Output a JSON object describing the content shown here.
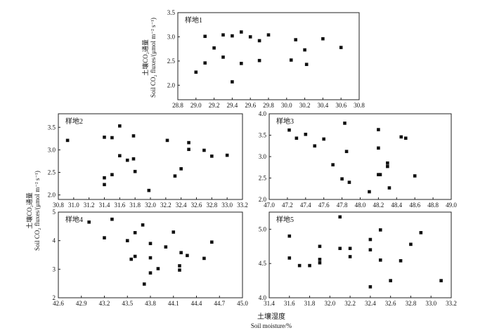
{
  "figure": {
    "y_title": {
      "zh": "土壤CO₂通量",
      "en_line": "Soil CO₂ fluxes/(μmol m⁻² s⁻¹)"
    },
    "x_title": {
      "zh": "土壤湿度",
      "en": "Soil moisture/%"
    }
  },
  "chart_data": [
    {
      "type": "scatter",
      "panel_label": "样地1",
      "xlim": [
        28.8,
        30.8
      ],
      "ylim": [
        1.7,
        3.5
      ],
      "xticks": [
        "28.8",
        "29.0",
        "29.2",
        "29.4",
        "29.6",
        "29.8",
        "30.0",
        "30.2",
        "30.4",
        "30.6",
        "30.8"
      ],
      "yticks": [
        "2.0",
        "2.5",
        "3.0",
        "3.5"
      ],
      "x": [
        29.0,
        29.1,
        29.1,
        29.2,
        29.3,
        29.3,
        29.4,
        29.4,
        29.5,
        29.5,
        29.6,
        29.7,
        29.7,
        29.8,
        30.05,
        30.1,
        30.2,
        30.22,
        30.4,
        30.6
      ],
      "y": [
        2.27,
        2.46,
        3.01,
        2.77,
        2.58,
        3.04,
        2.07,
        3.02,
        3.1,
        2.45,
        3.0,
        2.92,
        2.51,
        3.04,
        2.52,
        2.94,
        2.73,
        2.43,
        2.96,
        2.78
      ],
      "grid": false
    },
    {
      "type": "scatter",
      "panel_label": "样地2",
      "xlim": [
        30.8,
        33.2
      ],
      "ylim": [
        1.9,
        3.8
      ],
      "xticks": [
        "30.8",
        "31.0",
        "31.2",
        "31.4",
        "31.6",
        "31.8",
        "32.0",
        "32.2",
        "32.4",
        "32.6",
        "32.8",
        "33.0",
        "33.2"
      ],
      "yticks": [
        "2.0",
        "2.5",
        "3.0",
        "3.5"
      ],
      "x": [
        30.92,
        31.4,
        31.4,
        31.4,
        31.5,
        31.5,
        31.6,
        31.6,
        31.7,
        31.78,
        31.78,
        31.8,
        31.98,
        32.22,
        32.32,
        32.4,
        32.5,
        32.5,
        32.7,
        32.8,
        33.0
      ],
      "y": [
        3.21,
        3.28,
        2.38,
        2.23,
        3.27,
        2.45,
        3.53,
        2.87,
        2.77,
        3.31,
        2.8,
        2.52,
        2.1,
        3.21,
        2.42,
        2.58,
        3.16,
        3.01,
        2.99,
        2.86,
        2.88
      ],
      "grid": false
    },
    {
      "type": "scatter",
      "panel_label": "样地3",
      "xlim": [
        47.0,
        49.0
      ],
      "ylim": [
        2.0,
        4.0
      ],
      "xticks": [
        "47.0",
        "47.2",
        "47.4",
        "47.6",
        "47.8",
        "48.0",
        "48.2",
        "48.4",
        "48.6",
        "48.8",
        "49.0"
      ],
      "yticks": [
        "2.0",
        "2.5",
        "3.0",
        "3.5",
        "4.0"
      ],
      "x": [
        47.22,
        47.3,
        47.4,
        47.5,
        47.6,
        47.7,
        47.8,
        47.83,
        47.85,
        47.88,
        48.1,
        48.2,
        48.2,
        48.22,
        48.2,
        48.3,
        48.3,
        48.32,
        48.45,
        48.5,
        48.6
      ],
      "y": [
        3.62,
        3.43,
        3.52,
        3.25,
        3.41,
        2.81,
        2.48,
        3.78,
        3.12,
        2.4,
        2.18,
        3.63,
        3.2,
        2.58,
        2.58,
        2.85,
        2.77,
        2.27,
        3.46,
        3.43,
        2.55
      ],
      "grid": false
    },
    {
      "type": "scatter",
      "panel_label": "样地4",
      "xlim": [
        42.6,
        45.0
      ],
      "ylim": [
        2.0,
        5.0
      ],
      "xticks": [
        "42.6",
        "42.9",
        "43.2",
        "43.5",
        "43.8",
        "44.1",
        "44.4",
        "44.7",
        "45.0"
      ],
      "yticks": [
        "2",
        "3",
        "4",
        "5"
      ],
      "x": [
        43.0,
        43.2,
        43.3,
        43.5,
        43.55,
        43.6,
        43.6,
        43.7,
        43.72,
        43.8,
        43.8,
        43.8,
        43.9,
        44.0,
        44.1,
        44.18,
        44.18,
        44.2,
        44.28,
        44.5,
        44.6
      ],
      "y": [
        4.65,
        4.1,
        4.75,
        4.0,
        3.35,
        4.28,
        3.45,
        4.55,
        2.48,
        3.9,
        3.4,
        2.87,
        3.02,
        3.78,
        4.3,
        3.12,
        2.97,
        3.58,
        3.48,
        3.38,
        3.95
      ],
      "grid": false
    },
    {
      "type": "scatter",
      "panel_label": "样地5",
      "xlim": [
        31.4,
        33.2
      ],
      "ylim": [
        4.0,
        5.25
      ],
      "xticks": [
        "31.4",
        "31.6",
        "31.8",
        "32.0",
        "32.2",
        "32.4",
        "32.6",
        "32.8",
        "33.0",
        "33.2"
      ],
      "yticks": [
        "4.0",
        "4.5",
        "5.0"
      ],
      "x": [
        31.6,
        31.6,
        31.7,
        31.8,
        31.9,
        31.9,
        31.9,
        32.1,
        32.1,
        32.2,
        32.2,
        32.4,
        32.4,
        32.4,
        32.5,
        32.5,
        32.6,
        32.7,
        32.8,
        32.9,
        33.1
      ],
      "y": [
        4.9,
        4.58,
        4.47,
        4.47,
        4.56,
        4.51,
        4.75,
        5.18,
        4.72,
        4.72,
        4.6,
        4.85,
        4.7,
        4.16,
        4.55,
        4.99,
        4.25,
        4.54,
        4.78,
        4.95,
        4.25
      ],
      "grid": false
    }
  ]
}
